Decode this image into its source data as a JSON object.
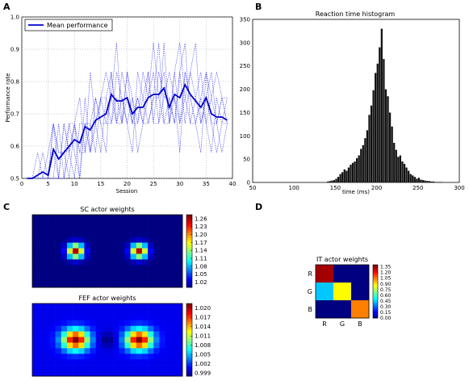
{
  "panels": {
    "A": "A",
    "B": "B",
    "C": "C",
    "D": "D"
  },
  "chart_data": [
    {
      "id": "A",
      "type": "line",
      "title": "",
      "xlabel": "Session",
      "ylabel": "Performance rate",
      "xlim": [
        0,
        40
      ],
      "ylim": [
        0.5,
        1.0
      ],
      "xticks": [
        0,
        5,
        10,
        15,
        20,
        25,
        30,
        35,
        40
      ],
      "yticks": [
        0.5,
        0.6,
        0.7,
        0.8,
        0.9,
        1.0
      ],
      "grid": true,
      "legend": {
        "placement": "top-left",
        "entries": [
          "Mean performance"
        ]
      },
      "mean_series": {
        "name": "Mean performance",
        "color": "#0000cc",
        "x": [
          1,
          2,
          3,
          4,
          5,
          6,
          7,
          8,
          9,
          10,
          11,
          12,
          13,
          14,
          15,
          16,
          17,
          18,
          19,
          20,
          21,
          22,
          23,
          24,
          25,
          26,
          27,
          28,
          29,
          30,
          31,
          32,
          33,
          34,
          35,
          36,
          37,
          38,
          39
        ],
        "y": [
          0.5,
          0.5,
          0.51,
          0.52,
          0.51,
          0.59,
          0.56,
          0.58,
          0.6,
          0.62,
          0.61,
          0.66,
          0.65,
          0.68,
          0.69,
          0.7,
          0.76,
          0.74,
          0.74,
          0.75,
          0.7,
          0.72,
          0.72,
          0.75,
          0.76,
          0.76,
          0.78,
          0.72,
          0.76,
          0.75,
          0.79,
          0.76,
          0.74,
          0.72,
          0.75,
          0.7,
          0.69,
          0.69,
          0.68
        ]
      },
      "individual_series": [
        {
          "color": "#2222ee",
          "y": [
            0.5,
            0.5,
            0.5,
            0.5,
            0.58,
            0.67,
            0.5,
            0.67,
            0.58,
            0.67,
            0.75,
            0.58,
            0.83,
            0.67,
            0.75,
            0.83,
            0.75,
            0.92,
            0.67,
            0.83,
            0.75,
            0.67,
            0.83,
            0.75,
            0.92,
            0.75,
            0.83,
            0.67,
            0.83,
            0.92,
            0.75,
            0.83,
            0.92,
            0.67,
            0.75,
            0.83,
            0.67,
            0.75,
            0.67
          ]
        },
        {
          "color": "#2222ee",
          "y": [
            0.5,
            0.5,
            0.58,
            0.5,
            0.5,
            0.5,
            0.67,
            0.5,
            0.67,
            0.58,
            0.5,
            0.75,
            0.58,
            0.75,
            0.67,
            0.58,
            0.83,
            0.67,
            0.75,
            0.67,
            0.58,
            0.83,
            0.75,
            0.67,
            0.75,
            0.92,
            0.67,
            0.75,
            0.67,
            0.83,
            0.92,
            0.67,
            0.75,
            0.83,
            0.67,
            0.58,
            0.75,
            0.67,
            0.75
          ]
        },
        {
          "color": "#2222ee",
          "y": [
            0.5,
            0.5,
            0.5,
            0.58,
            0.5,
            0.67,
            0.58,
            0.58,
            0.5,
            0.67,
            0.58,
            0.67,
            0.67,
            0.58,
            0.75,
            0.67,
            0.67,
            0.83,
            0.75,
            0.67,
            0.75,
            0.58,
            0.67,
            0.83,
            0.67,
            0.67,
            0.75,
            0.83,
            0.75,
            0.67,
            0.83,
            0.75,
            0.67,
            0.75,
            0.83,
            0.75,
            0.67,
            0.58,
            0.67
          ]
        },
        {
          "color": "#2222ee",
          "y": [
            0.5,
            0.5,
            0.5,
            0.5,
            0.5,
            0.58,
            0.5,
            0.5,
            0.58,
            0.5,
            0.67,
            0.67,
            0.58,
            0.67,
            0.58,
            0.75,
            0.83,
            0.67,
            0.83,
            0.75,
            0.67,
            0.75,
            0.67,
            0.75,
            0.83,
            0.67,
            0.92,
            0.67,
            0.75,
            0.58,
            0.83,
            0.75,
            0.67,
            0.75,
            0.67,
            0.75,
            0.83,
            0.75,
            0.67
          ]
        },
        {
          "color": "#2222ee",
          "y": [
            0.5,
            0.5,
            0.5,
            0.5,
            0.5,
            0.67,
            0.58,
            0.58,
            0.67,
            0.67,
            0.58,
            0.58,
            0.67,
            0.75,
            0.67,
            0.67,
            0.75,
            0.67,
            0.67,
            0.75,
            0.67,
            0.75,
            0.67,
            0.67,
            0.75,
            0.75,
            0.67,
            0.67,
            0.83,
            0.67,
            0.75,
            0.67,
            0.67,
            0.58,
            0.83,
            0.67,
            0.67,
            0.75,
            0.75
          ]
        },
        {
          "color": "#2222ee",
          "y": [
            0.5,
            0.5,
            0.5,
            0.5,
            0.5,
            0.5,
            0.5,
            0.67,
            0.58,
            0.67,
            0.5,
            0.67,
            0.58,
            0.67,
            0.75,
            0.75,
            0.67,
            0.75,
            0.67,
            0.83,
            0.67,
            0.67,
            0.75,
            0.83,
            0.67,
            0.83,
            0.75,
            0.75,
            0.67,
            0.83,
            0.67,
            0.83,
            0.75,
            0.67,
            0.75,
            0.67,
            0.58,
            0.67,
            0.67
          ]
        }
      ]
    },
    {
      "id": "B",
      "type": "bar",
      "title": "Reaction time histogram",
      "xlabel": "time (ms)",
      "ylabel": "",
      "xlim": [
        50,
        300
      ],
      "ylim": [
        0,
        350
      ],
      "xticks": [
        50,
        100,
        150,
        200,
        250,
        300
      ],
      "yticks": [
        0,
        50,
        100,
        150,
        200,
        250,
        300,
        350
      ],
      "bin_width": 2.5,
      "bar_color": "#111111",
      "bins_start": [
        140,
        142.5,
        145,
        147.5,
        150,
        152.5,
        155,
        157.5,
        160,
        162.5,
        165,
        167.5,
        170,
        172.5,
        175,
        177.5,
        180,
        182.5,
        185,
        187.5,
        190,
        192.5,
        195,
        197.5,
        200,
        202.5,
        205,
        207.5,
        210,
        212.5,
        215,
        217.5,
        220,
        222.5,
        225,
        227.5,
        230,
        232.5,
        235,
        237.5,
        240,
        242.5,
        245,
        247.5,
        250,
        252.5,
        255,
        257.5,
        260,
        262.5,
        265,
        267.5,
        270,
        272.5,
        275,
        277.5
      ],
      "counts": [
        2,
        3,
        4,
        5,
        8,
        12,
        18,
        22,
        28,
        25,
        32,
        38,
        42,
        45,
        52,
        58,
        72,
        80,
        95,
        112,
        145,
        165,
        198,
        235,
        255,
        290,
        330,
        265,
        200,
        185,
        150,
        120,
        85,
        70,
        55,
        58,
        45,
        40,
        32,
        25,
        18,
        15,
        12,
        8,
        10,
        6,
        5,
        4,
        3,
        3,
        2,
        2,
        1,
        1,
        1,
        1
      ]
    },
    {
      "id": "C1",
      "type": "heatmap",
      "title": "SC actor weights",
      "colorbar_ticks": [
        "1.26",
        "1.23",
        "1.20",
        "1.17",
        "1.14",
        "1.11",
        "1.08",
        "1.05",
        "1.02"
      ],
      "vmin": 1.0,
      "vmax": 1.275,
      "grid_size": [
        26,
        13
      ],
      "blobs": [
        {
          "center": [
            7,
            6
          ],
          "peak": 1.26,
          "spread_x": 1.0,
          "spread_y": 0.9
        },
        {
          "center": [
            18,
            6
          ],
          "peak": 1.26,
          "spread_x": 1.0,
          "spread_y": 0.9
        }
      ],
      "background": 1.0
    },
    {
      "id": "C2",
      "type": "heatmap",
      "title": "FEF actor weights",
      "colorbar_ticks": [
        "1.020",
        "1.017",
        "1.014",
        "1.011",
        "1.008",
        "1.005",
        "1.002",
        "0.999"
      ],
      "vmin": 0.998,
      "vmax": 1.0215,
      "grid_size": [
        26,
        13
      ],
      "blobs": [
        {
          "center": [
            7,
            6
          ],
          "peak": 1.0215,
          "spread_x": 1.6,
          "spread_y": 1.3
        },
        {
          "center": [
            18,
            6
          ],
          "peak": 1.0215,
          "spread_x": 1.6,
          "spread_y": 1.3
        },
        {
          "center": [
            12.5,
            6
          ],
          "peak": 0.998,
          "spread_x": 1.2,
          "spread_y": 1.0
        }
      ],
      "background": 1.0005
    },
    {
      "id": "D",
      "type": "heatmap",
      "title": "IT actor weights",
      "row_labels": [
        "R",
        "G",
        "B"
      ],
      "col_labels": [
        "R",
        "G",
        "B"
      ],
      "colorbar_ticks": [
        "1.35",
        "1.20",
        "1.05",
        "0.90",
        "0.75",
        "0.60",
        "0.45",
        "0.30",
        "0.15",
        "0.00"
      ],
      "vmin": 0.0,
      "vmax": 1.4,
      "matrix": [
        [
          1.35,
          0.0,
          0.0
        ],
        [
          0.45,
          0.88,
          0.0
        ],
        [
          0.0,
          0.0,
          1.05
        ]
      ]
    }
  ]
}
